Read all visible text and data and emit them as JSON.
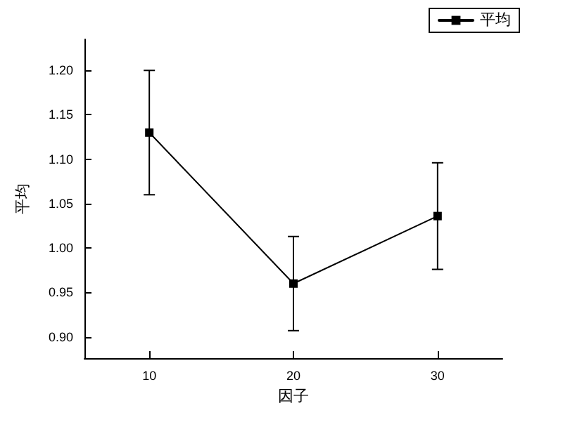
{
  "chart_data": {
    "type": "line",
    "xlabel": "因子",
    "ylabel": "平均",
    "x": [
      10,
      20,
      30
    ],
    "series": [
      {
        "name": "平均",
        "color": "#000000",
        "values": [
          1.13,
          0.96,
          1.036
        ],
        "errors": [
          0.07,
          0.053,
          0.06
        ]
      }
    ],
    "xlim": [
      5.5,
      34.5
    ],
    "xticks": [
      10,
      20,
      30
    ],
    "ylim": [
      0.876,
      1.235
    ],
    "yticks": [
      {
        "value": 0.9,
        "label": "0.90"
      },
      {
        "value": 0.95,
        "label": "0.95"
      },
      {
        "value": 1.0,
        "label": "1.00"
      },
      {
        "value": 1.05,
        "label": "1.05"
      },
      {
        "value": 1.1,
        "label": "1.10"
      },
      {
        "value": 1.15,
        "label": "1.15"
      },
      {
        "value": 1.2,
        "label": "1.20"
      }
    ],
    "grid": false,
    "legend": "top right",
    "marker": "square",
    "line_style": "solid"
  }
}
